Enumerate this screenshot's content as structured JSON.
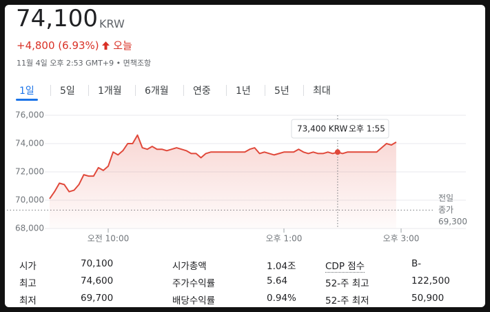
{
  "header": {
    "price": "74,100",
    "currency": "KRW",
    "change": "+4,800 (6.93%)",
    "period": "오늘",
    "timestamp": "11월 4일 오후 2:53 GMT+9",
    "separator": "•",
    "disclaimer": "면책조항"
  },
  "tabs": [
    "1일",
    "5일",
    "1개월",
    "6개월",
    "연중",
    "1년",
    "5년",
    "최대"
  ],
  "chart_data": {
    "type": "line",
    "x": [
      540,
      545,
      550,
      555,
      560,
      565,
      570,
      575,
      580,
      585,
      590,
      595,
      600,
      605,
      610,
      615,
      620,
      625,
      630,
      635,
      640,
      645,
      650,
      655,
      660,
      665,
      670,
      675,
      680,
      685,
      690,
      695,
      700,
      705,
      710,
      715,
      720,
      725,
      730,
      735,
      740,
      745,
      750,
      755,
      760,
      765,
      770,
      775,
      780,
      785,
      790,
      795,
      800,
      805,
      810,
      815,
      820,
      825,
      830,
      835,
      840,
      845,
      850,
      855,
      860,
      865,
      870,
      875,
      880,
      885,
      890,
      895
    ],
    "series": [
      {
        "name": "KRW",
        "color": "#e0483a",
        "values": [
          70100,
          70600,
          71200,
          71100,
          70600,
          70700,
          71100,
          71800,
          71700,
          71700,
          72300,
          72100,
          72400,
          73400,
          73200,
          73500,
          74000,
          74000,
          74600,
          73700,
          73600,
          73800,
          73600,
          73600,
          73500,
          73600,
          73700,
          73600,
          73500,
          73300,
          73300,
          73000,
          73300,
          73400,
          73400,
          73400,
          73400,
          73400,
          73400,
          73400,
          73400,
          73600,
          73700,
          73300,
          73400,
          73300,
          73200,
          73300,
          73400,
          73400,
          73400,
          73600,
          73400,
          73300,
          73400,
          73300,
          73300,
          73400,
          73300,
          73400,
          73300,
          73400,
          73400,
          73400,
          73400,
          73400,
          73400,
          73400,
          73700,
          74000,
          73900,
          74100
        ]
      }
    ],
    "xlim": [
      540,
      930
    ],
    "xticks": [
      {
        "value": 600,
        "label": "오전 10:00"
      },
      {
        "value": 780,
        "label": "오후 1:00"
      },
      {
        "value": 900,
        "label": "오후 3:00"
      }
    ],
    "ylim": [
      68000,
      76000
    ],
    "yticks": [
      {
        "value": 68000,
        "label": "68,000"
      },
      {
        "value": 70000,
        "label": "70,000"
      },
      {
        "value": 72000,
        "label": "72,000"
      },
      {
        "value": 74000,
        "label": "74,000"
      },
      {
        "value": 76000,
        "label": "76,000"
      }
    ],
    "grid": true,
    "previous_close": {
      "label": [
        "전일",
        "종가"
      ],
      "value": 69300,
      "value_label": "69,300"
    },
    "tooltip": {
      "label": "73,400 KRW",
      "time": "오후 1:55",
      "x": 835,
      "value": 73400
    }
  },
  "stats": [
    [
      "시가",
      "70,100",
      "시가총액",
      "1.04조",
      "CDP 점수",
      "B-"
    ],
    [
      "최고",
      "74,600",
      "주가수익률",
      "5.64",
      "52-주 최고",
      "122,500"
    ],
    [
      "최저",
      "69,700",
      "배당수익률",
      "0.94%",
      "52-주 최저",
      "50,900"
    ]
  ]
}
